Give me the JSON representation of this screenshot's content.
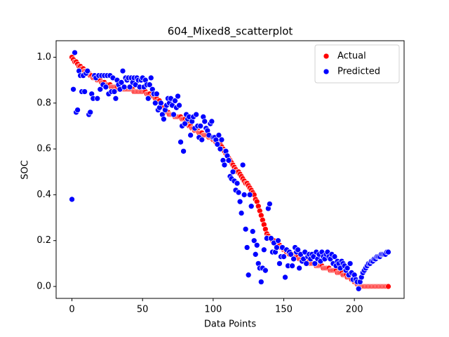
{
  "chart_data": {
    "type": "scatter",
    "title": "604_Mixed8_scatterplot",
    "xlabel": "Data Points",
    "ylabel": "SOC",
    "xlim": [
      -11.2,
      235.2
    ],
    "ylim": [
      -0.052,
      1.072
    ],
    "xticks": [
      0,
      50,
      100,
      150,
      200
    ],
    "yticks": [
      {
        "value": 0,
        "label": "0.0"
      },
      0.2,
      0.4,
      0.6,
      0.8,
      {
        "value": 1,
        "label": "1.0"
      }
    ],
    "legend": "upper right",
    "x": [
      0,
      1,
      2,
      3,
      4,
      5,
      6,
      7,
      8,
      9,
      10,
      11,
      12,
      13,
      14,
      15,
      16,
      17,
      18,
      19,
      20,
      21,
      22,
      23,
      24,
      25,
      26,
      27,
      28,
      29,
      30,
      31,
      32,
      33,
      34,
      35,
      36,
      37,
      38,
      39,
      40,
      41,
      42,
      43,
      44,
      45,
      46,
      47,
      48,
      49,
      50,
      51,
      52,
      53,
      54,
      55,
      56,
      57,
      58,
      59,
      60,
      61,
      62,
      63,
      64,
      65,
      66,
      67,
      68,
      69,
      70,
      71,
      72,
      73,
      74,
      75,
      76,
      77,
      78,
      79,
      80,
      81,
      82,
      83,
      84,
      85,
      86,
      87,
      88,
      89,
      90,
      91,
      92,
      93,
      94,
      95,
      96,
      97,
      98,
      99,
      100,
      101,
      102,
      103,
      104,
      105,
      106,
      107,
      108,
      109,
      110,
      111,
      112,
      113,
      114,
      115,
      116,
      117,
      118,
      119,
      120,
      121,
      122,
      123,
      124,
      125,
      126,
      127,
      128,
      129,
      130,
      131,
      132,
      133,
      134,
      135,
      136,
      137,
      138,
      139,
      140,
      141,
      142,
      143,
      144,
      145,
      146,
      147,
      148,
      149,
      150,
      151,
      152,
      153,
      154,
      155,
      156,
      157,
      158,
      159,
      160,
      161,
      162,
      163,
      164,
      165,
      166,
      167,
      168,
      169,
      170,
      171,
      172,
      173,
      174,
      175,
      176,
      177,
      178,
      179,
      180,
      181,
      182,
      183,
      184,
      185,
      186,
      187,
      188,
      189,
      190,
      191,
      192,
      193,
      194,
      195,
      196,
      197,
      198,
      199,
      200,
      201,
      202,
      203,
      204,
      205,
      206,
      207,
      208,
      209,
      210,
      211,
      212,
      213,
      214,
      215,
      216,
      217,
      218,
      219,
      220,
      221,
      222,
      223,
      224
    ],
    "series": [
      {
        "name": "Actual",
        "color": "#ff0000",
        "values": [
          1.0,
          0.99,
          0.98,
          0.98,
          0.97,
          0.96,
          0.96,
          0.95,
          0.95,
          0.94,
          0.94,
          0.93,
          0.93,
          0.92,
          0.92,
          0.91,
          0.91,
          0.91,
          0.9,
          0.9,
          0.9,
          0.89,
          0.89,
          0.89,
          0.88,
          0.88,
          0.88,
          0.88,
          0.87,
          0.87,
          0.87,
          0.87,
          0.87,
          0.86,
          0.86,
          0.86,
          0.86,
          0.86,
          0.86,
          0.86,
          0.86,
          0.86,
          0.86,
          0.86,
          0.85,
          0.85,
          0.85,
          0.85,
          0.85,
          0.85,
          0.85,
          0.85,
          0.85,
          0.84,
          0.84,
          0.84,
          0.83,
          0.83,
          0.83,
          0.82,
          0.82,
          0.81,
          0.81,
          0.8,
          0.79,
          0.78,
          0.77,
          0.76,
          0.76,
          0.75,
          0.75,
          0.75,
          0.75,
          0.74,
          0.74,
          0.74,
          0.74,
          0.74,
          0.73,
          0.73,
          0.73,
          0.72,
          0.71,
          0.7,
          0.7,
          0.69,
          0.69,
          0.68,
          0.68,
          0.68,
          0.67,
          0.67,
          0.67,
          0.66,
          0.66,
          0.66,
          0.66,
          0.65,
          0.65,
          0.65,
          0.64,
          0.64,
          0.63,
          0.63,
          0.62,
          0.62,
          0.61,
          0.6,
          0.59,
          0.58,
          0.57,
          0.56,
          0.55,
          0.54,
          0.53,
          0.52,
          0.51,
          0.5,
          0.5,
          0.49,
          0.48,
          0.47,
          0.46,
          0.45,
          0.45,
          0.44,
          0.43,
          0.42,
          0.41,
          0.4,
          0.38,
          0.37,
          0.35,
          0.33,
          0.31,
          0.29,
          0.27,
          0.25,
          0.23,
          0.22,
          0.21,
          0.21,
          0.2,
          0.2,
          0.19,
          0.19,
          0.18,
          0.18,
          0.17,
          0.17,
          0.16,
          0.16,
          0.15,
          0.15,
          0.14,
          0.14,
          0.14,
          0.13,
          0.13,
          0.13,
          0.13,
          0.12,
          0.12,
          0.12,
          0.12,
          0.11,
          0.11,
          0.11,
          0.11,
          0.1,
          0.1,
          0.1,
          0.1,
          0.09,
          0.09,
          0.09,
          0.09,
          0.09,
          0.08,
          0.08,
          0.08,
          0.08,
          0.08,
          0.07,
          0.07,
          0.07,
          0.07,
          0.07,
          0.06,
          0.06,
          0.06,
          0.06,
          0.05,
          0.05,
          0.05,
          0.04,
          0.04,
          0.04,
          0.03,
          0.03,
          0.02,
          0.02,
          0.01,
          0.01,
          0.0,
          0.0,
          0.0,
          0.0,
          0.0,
          0.0,
          0.0,
          0.0,
          0.0,
          0.0,
          0.0,
          0.0,
          0.0,
          0.0,
          0.0,
          0.0,
          0.0,
          0.0,
          0.0,
          0.0,
          0.0
        ]
      },
      {
        "name": "Predicted",
        "color": "#0000ff",
        "values": [
          0.38,
          0.86,
          1.02,
          0.76,
          0.77,
          0.94,
          0.92,
          0.85,
          0.92,
          0.85,
          0.93,
          0.94,
          0.75,
          0.76,
          0.84,
          0.82,
          0.92,
          0.91,
          0.82,
          0.92,
          0.86,
          0.92,
          0.88,
          0.92,
          0.87,
          0.92,
          0.84,
          0.92,
          0.85,
          0.91,
          0.85,
          0.82,
          0.9,
          0.88,
          0.86,
          0.89,
          0.94,
          0.87,
          0.91,
          0.9,
          0.91,
          0.87,
          0.91,
          0.89,
          0.91,
          0.88,
          0.91,
          0.9,
          0.87,
          0.9,
          0.91,
          0.87,
          0.9,
          0.88,
          0.82,
          0.88,
          0.91,
          0.86,
          0.84,
          0.8,
          0.84,
          0.77,
          0.78,
          0.8,
          0.75,
          0.73,
          0.77,
          0.79,
          0.82,
          0.8,
          0.82,
          0.79,
          0.75,
          0.81,
          0.78,
          0.83,
          0.79,
          0.63,
          0.7,
          0.59,
          0.71,
          0.75,
          0.73,
          0.74,
          0.66,
          0.72,
          0.74,
          0.69,
          0.75,
          0.7,
          0.65,
          0.7,
          0.64,
          0.74,
          0.72,
          0.69,
          0.68,
          0.66,
          0.71,
          0.72,
          0.65,
          0.65,
          0.64,
          0.62,
          0.66,
          0.6,
          0.64,
          0.55,
          0.53,
          0.59,
          0.57,
          0.55,
          0.48,
          0.47,
          0.5,
          0.46,
          0.42,
          0.45,
          0.41,
          0.37,
          0.32,
          0.53,
          0.4,
          0.25,
          0.17,
          0.05,
          0.4,
          0.35,
          0.24,
          0.2,
          0.14,
          0.18,
          0.1,
          0.08,
          0.02,
          0.08,
          0.16,
          0.07,
          0.21,
          0.34,
          0.36,
          0.21,
          0.15,
          0.19,
          0.15,
          0.17,
          0.2,
          0.1,
          0.13,
          0.17,
          0.13,
          0.04,
          0.16,
          0.09,
          0.15,
          0.14,
          0.09,
          0.12,
          0.17,
          0.15,
          0.16,
          0.08,
          0.14,
          0.11,
          0.12,
          0.15,
          0.1,
          0.13,
          0.14,
          0.12,
          0.14,
          0.13,
          0.1,
          0.15,
          0.12,
          0.14,
          0.11,
          0.15,
          0.13,
          0.12,
          0.14,
          0.15,
          0.13,
          0.12,
          0.14,
          0.1,
          0.13,
          0.09,
          0.11,
          0.1,
          0.08,
          0.11,
          0.1,
          0.09,
          0.07,
          0.08,
          0.05,
          0.1,
          0.06,
          0.03,
          0.05,
          0.03,
          0.02,
          -0.01,
          0.02,
          0.04,
          0.06,
          0.07,
          0.08,
          0.09,
          0.1,
          0.1,
          0.11,
          0.11,
          0.12,
          0.12,
          0.13,
          0.13,
          0.13,
          0.14,
          0.14,
          0.14,
          0.14,
          0.15,
          0.15
        ]
      }
    ]
  }
}
